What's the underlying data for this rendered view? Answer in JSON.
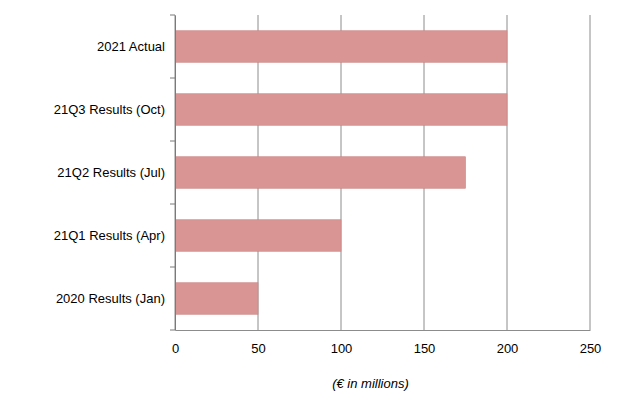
{
  "chart_data": {
    "type": "bar",
    "orientation": "horizontal",
    "categories": [
      "2021 Actual",
      "21Q3 Results (Oct)",
      "21Q2 Results (Jul)",
      "21Q1 Results (Apr)",
      "2020 Results (Jan)"
    ],
    "values": [
      200,
      200,
      175,
      100,
      50
    ],
    "color": "#d99594",
    "x_label": "(€ in millions)",
    "xlim": [
      0,
      250
    ],
    "xticks": [
      0,
      50,
      100,
      150,
      200,
      250
    ],
    "grid": true
  }
}
